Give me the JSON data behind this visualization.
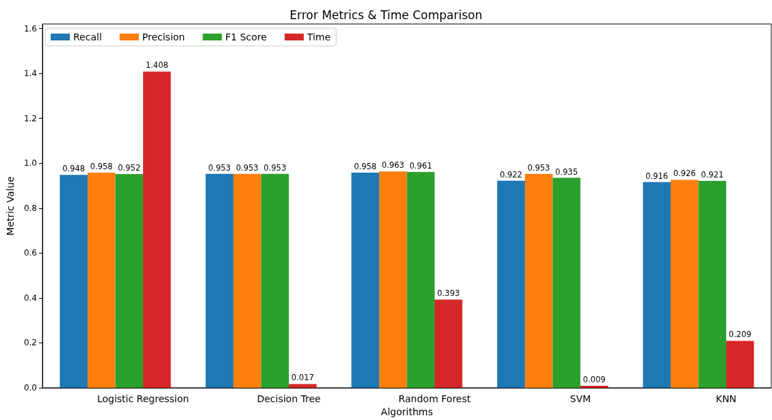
{
  "chart_data": {
    "type": "bar",
    "title": "Error Metrics & Time Comparison",
    "xlabel": "Algorithms",
    "ylabel": "Metric Value",
    "categories": [
      "Logistic Regression",
      "Decision Tree",
      "Random Forest",
      "SVM",
      "KNN"
    ],
    "series": [
      {
        "name": "Recall",
        "color": "#1f77b4",
        "values": [
          0.948,
          0.953,
          0.958,
          0.922,
          0.916
        ]
      },
      {
        "name": "Precision",
        "color": "#ff7f0e",
        "values": [
          0.958,
          0.953,
          0.963,
          0.953,
          0.926
        ]
      },
      {
        "name": "F1 Score",
        "color": "#2ca02c",
        "values": [
          0.952,
          0.953,
          0.961,
          0.935,
          0.921
        ]
      },
      {
        "name": "Time",
        "color": "#d62728",
        "values": [
          1.408,
          0.017,
          0.393,
          0.009,
          0.209
        ]
      }
    ],
    "ylim": [
      0,
      1.62
    ],
    "yticks": [
      {
        "value": 0,
        "label": "0.0"
      },
      0.2,
      0.4,
      0.6,
      0.8,
      {
        "value": 1,
        "label": "1.0"
      },
      1.2,
      1.4,
      1.6
    ],
    "data_labels": true,
    "legend": "top left",
    "grid": false
  }
}
